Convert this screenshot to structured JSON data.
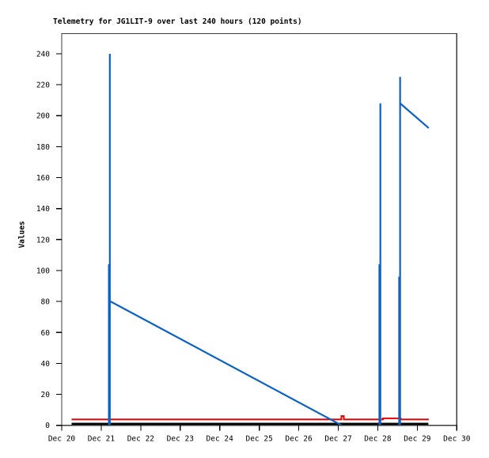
{
  "chart_data": {
    "type": "line",
    "title": "Telemetry for JG1LIT-9 over last 240 hours (120 points)",
    "ylabel": "Values",
    "xlabel": "",
    "background": "#ffffff",
    "axis_color": "#3c3c3c",
    "tick_color": "#000000",
    "text_color": "#000000",
    "grid": false,
    "legend": "none",
    "ylim": [
      0,
      253
    ],
    "y_ticks": [
      0,
      20,
      40,
      60,
      80,
      100,
      120,
      140,
      160,
      180,
      200,
      220,
      240
    ],
    "xlim_days": [
      0,
      10
    ],
    "x_tick_days": [
      0,
      1,
      2,
      3,
      4,
      5,
      6,
      7,
      8,
      9,
      10
    ],
    "x_tick_labels": [
      "Dec 20",
      "Dec 21",
      "Dec 22",
      "Dec 23",
      "Dec 24",
      "Dec 25",
      "Dec 26",
      "Dec 27",
      "Dec 28",
      "Dec 29",
      "Dec 30"
    ],
    "series": [
      {
        "name": "series-black",
        "color": "#000000",
        "width": 2.6,
        "segments": [
          {
            "points": [
              [
                0.25,
                1
              ],
              [
                9.28,
                1
              ]
            ]
          }
        ]
      },
      {
        "name": "series-red",
        "color": "#ee0000",
        "width": 2,
        "segments": [
          {
            "points": [
              [
                0.25,
                3.8
              ],
              [
                7.08,
                3.8
              ],
              [
                7.08,
                6
              ],
              [
                7.14,
                6
              ],
              [
                7.14,
                3.8
              ],
              [
                8.13,
                3.8
              ],
              [
                8.13,
                4.5
              ],
              [
                8.58,
                4.5
              ],
              [
                8.58,
                3.8
              ],
              [
                9.29,
                3.8
              ]
            ]
          }
        ]
      },
      {
        "name": "series-blue",
        "color": "#0b62c6",
        "width": 2.2,
        "segments": [
          {
            "points": [
              [
                1.218,
                240
              ],
              [
                1.218,
                0
              ]
            ]
          },
          {
            "points": [
              [
                1.188,
                104
              ],
              [
                1.188,
                0
              ]
            ],
            "w": 1.6
          },
          {
            "points": [
              [
                1.236,
                80
              ],
              [
                7.085,
                0
              ]
            ]
          },
          {
            "points": [
              [
                8.065,
                208
              ],
              [
                8.065,
                0
              ]
            ]
          },
          {
            "points": [
              [
                8.035,
                104
              ],
              [
                8.035,
                0
              ]
            ],
            "w": 1.6
          },
          {
            "points": [
              [
                8.565,
                225
              ],
              [
                8.565,
                0
              ]
            ]
          },
          {
            "points": [
              [
                8.535,
                96
              ],
              [
                8.535,
                0
              ]
            ],
            "w": 1.6
          },
          {
            "points": [
              [
                8.565,
                208
              ],
              [
                9.29,
                192
              ]
            ]
          }
        ]
      }
    ]
  }
}
